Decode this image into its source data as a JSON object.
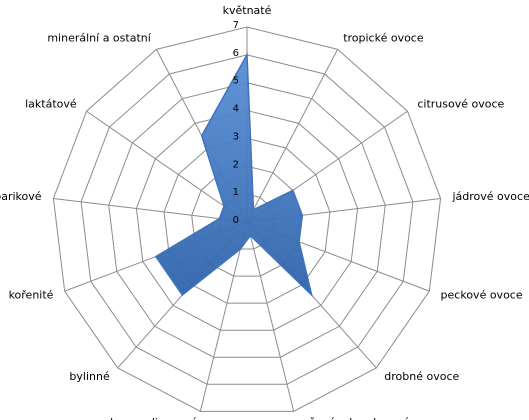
{
  "chart_data": {
    "type": "radar",
    "categories": [
      "květnaté",
      "tropické ovoce",
      "citrusové ovoce",
      "jádrové ovoce",
      "peckové ovoce",
      "drobné ovoce",
      "sušené a kandované ovoce",
      "karamelizované",
      "bylinné",
      "kořenité",
      "barikové",
      "laktátové",
      "minerální a ostatní"
    ],
    "values": [
      6,
      0.5,
      2,
      2,
      2,
      3.5,
      0.5,
      1,
      3.5,
      3.5,
      1,
      1,
      3.5
    ],
    "color": "#3f73bd",
    "ylim": [
      0,
      7
    ],
    "yticks": [
      0,
      1,
      2,
      3,
      4,
      5,
      6,
      7
    ],
    "grid": true
  }
}
